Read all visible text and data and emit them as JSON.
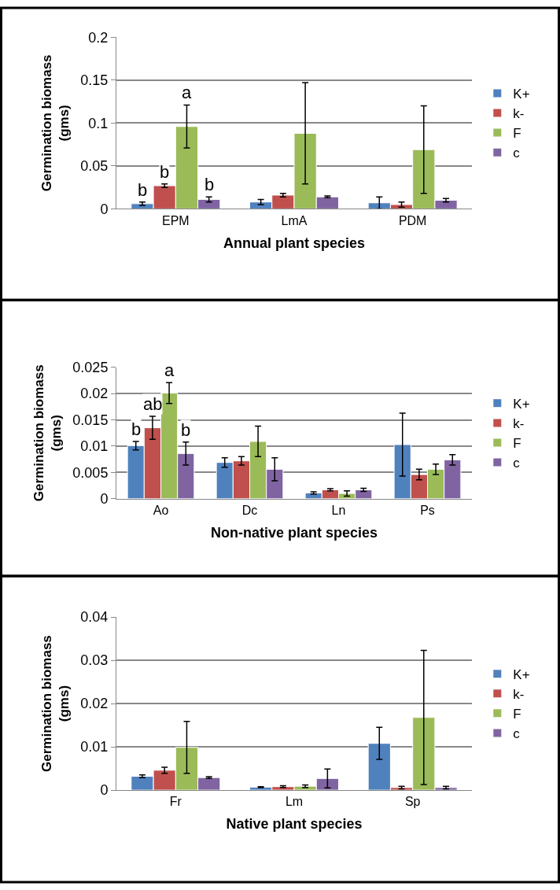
{
  "chart_data": [
    {
      "type": "bar",
      "xlabel": "Annual plant species",
      "ylabel": "Germination biomass (gms)",
      "categories": [
        "EPM",
        "LmA",
        "PDM"
      ],
      "ylim": [
        0,
        0.2
      ],
      "yticks": [
        0,
        0.05,
        0.1,
        0.15,
        0.2
      ],
      "grid": "y",
      "legend": "right",
      "series": [
        {
          "name": "K+",
          "color": "#4f81bd",
          "values": [
            0.006,
            0.008,
            0.007
          ],
          "errors": [
            0.002,
            0.003,
            0.007
          ]
        },
        {
          "name": "k-",
          "color": "#c0504d",
          "values": [
            0.027,
            0.016,
            0.005
          ],
          "errors": [
            0.002,
            0.002,
            0.003
          ]
        },
        {
          "name": "F",
          "color": "#9bbb59",
          "values": [
            0.096,
            0.088,
            0.069
          ],
          "errors": [
            0.025,
            0.059,
            0.051
          ]
        },
        {
          "name": "c",
          "color": "#8064a2",
          "values": [
            0.011,
            0.014,
            0.01
          ],
          "errors": [
            0.003,
            0.001,
            0.002
          ]
        }
      ],
      "annotations": [
        {
          "text": "b",
          "x": "EPM",
          "y": 0.006
        },
        {
          "text": "b",
          "x": "EPM",
          "y": 0.027
        },
        {
          "text": "a",
          "x": "EPM",
          "y": 0.096
        },
        {
          "text": "b",
          "x": "EPM",
          "y": 0.011
        }
      ]
    },
    {
      "type": "bar",
      "xlabel": "Non-native plant species",
      "ylabel": "Germination biomass (gms)",
      "categories": [
        "Ao",
        "Dc",
        "Ln",
        "Ps"
      ],
      "ylim": [
        0,
        0.025
      ],
      "yticks": [
        0,
        0.005,
        0.01,
        0.015,
        0.02,
        0.025
      ],
      "grid": "y",
      "legend": "right",
      "series": [
        {
          "name": "K+",
          "color": "#4f81bd",
          "values": [
            0.0101,
            0.0069,
            0.0011,
            0.0103
          ],
          "errors": [
            0.0008,
            0.0009,
            0.0002,
            0.006
          ]
        },
        {
          "name": "k-",
          "color": "#c0504d",
          "values": [
            0.0135,
            0.0072,
            0.0017,
            0.0046
          ],
          "errors": [
            0.0022,
            0.0008,
            0.0002,
            0.001
          ]
        },
        {
          "name": "F",
          "color": "#9bbb59",
          "values": [
            0.0201,
            0.0109,
            0.001,
            0.0056
          ],
          "errors": [
            0.002,
            0.0029,
            0.0005,
            0.001
          ]
        },
        {
          "name": "c",
          "color": "#8064a2",
          "values": [
            0.0086,
            0.0056,
            0.0017,
            0.0074
          ],
          "errors": [
            0.0022,
            0.0022,
            0.0003,
            0.001
          ]
        }
      ],
      "annotations": [
        {
          "text": "b",
          "x": "Ao",
          "y": 0.0101
        },
        {
          "text": "ab",
          "x": "Ao",
          "y": 0.0135
        },
        {
          "text": "a",
          "x": "Ao",
          "y": 0.0201
        },
        {
          "text": "b",
          "x": "Ao",
          "y": 0.0086
        }
      ]
    },
    {
      "type": "bar",
      "xlabel": "Native plant species",
      "ylabel": "Germination biomass (gms)",
      "categories": [
        "Fr",
        "Lm",
        "Sp"
      ],
      "ylim": [
        0,
        0.04
      ],
      "yticks": [
        0,
        0.01,
        0.02,
        0.03,
        0.04
      ],
      "grid": "y",
      "legend": "right",
      "series": [
        {
          "name": "K+",
          "color": "#4f81bd",
          "values": [
            0.0032,
            0.0007,
            0.0108
          ],
          "errors": [
            0.0003,
            0.0001,
            0.0037
          ]
        },
        {
          "name": "k-",
          "color": "#c0504d",
          "values": [
            0.0046,
            0.0008,
            0.0006
          ],
          "errors": [
            0.0007,
            0.0002,
            0.0003
          ]
        },
        {
          "name": "F",
          "color": "#9bbb59",
          "values": [
            0.0099,
            0.0009,
            0.0168
          ],
          "errors": [
            0.006,
            0.0003,
            0.0155
          ]
        },
        {
          "name": "c",
          "color": "#8064a2",
          "values": [
            0.0029,
            0.0027,
            0.0006
          ],
          "errors": [
            0.0002,
            0.0022,
            0.0003
          ]
        }
      ]
    }
  ]
}
